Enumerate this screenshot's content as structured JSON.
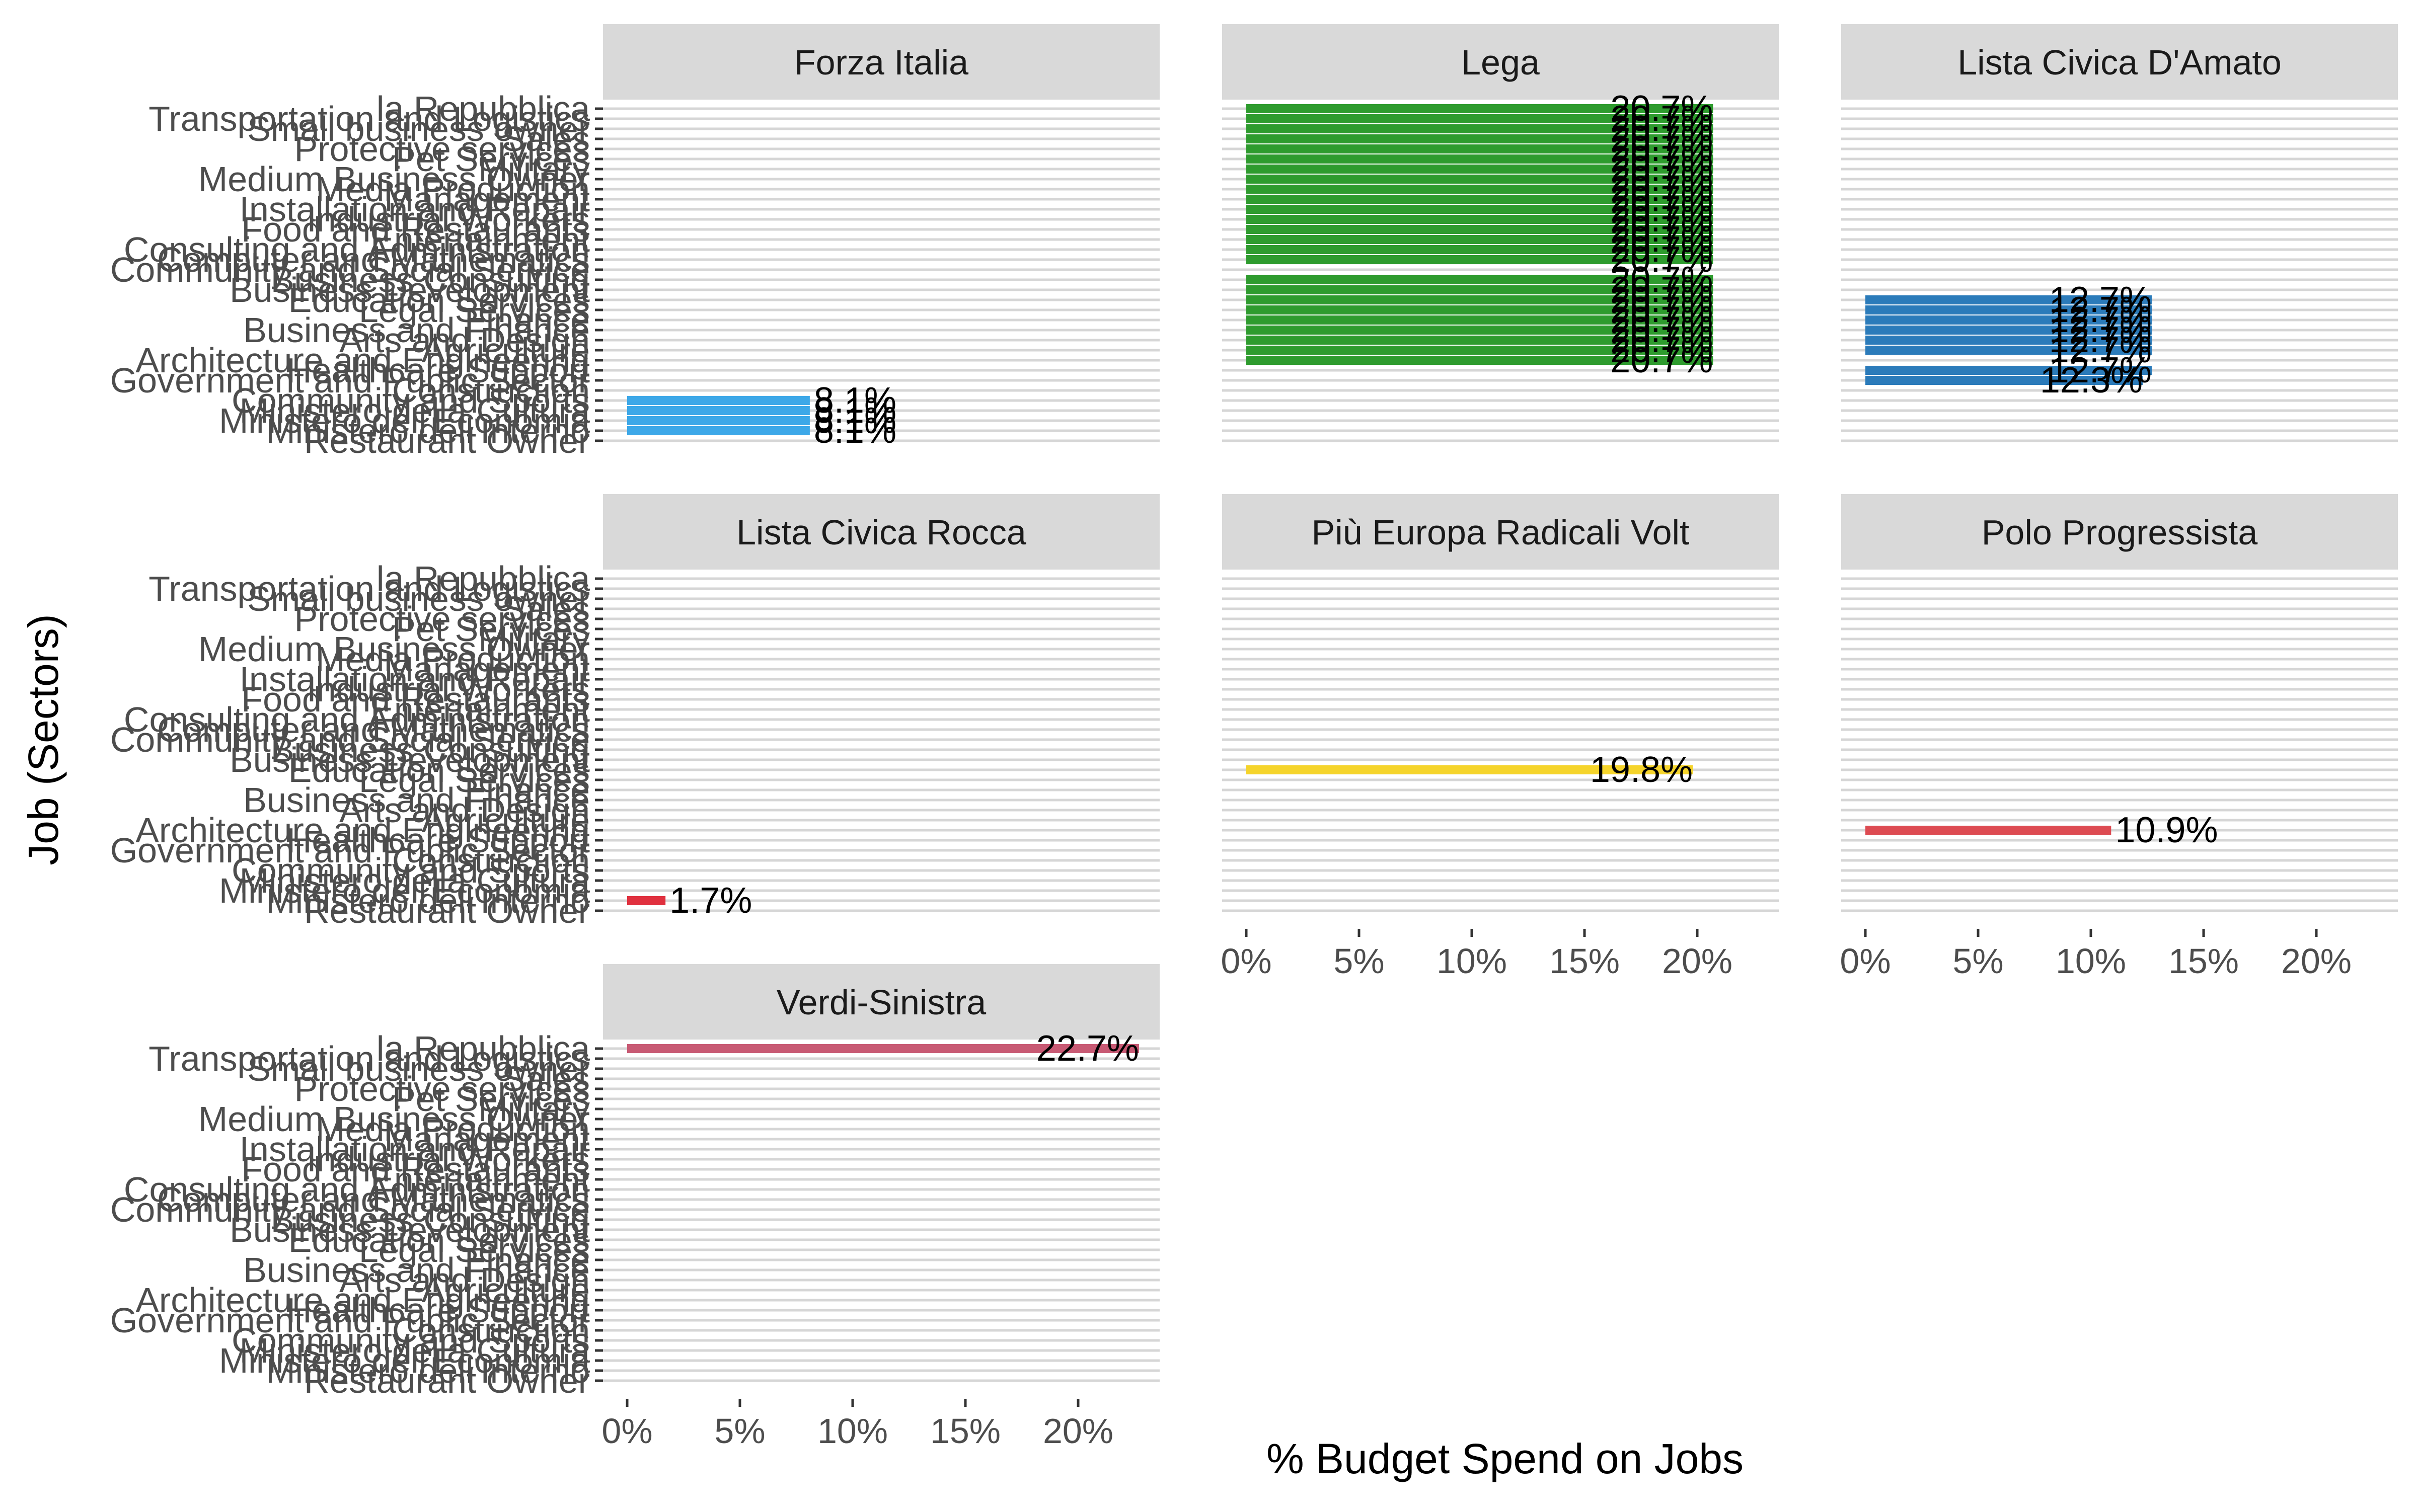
{
  "chart_data": {
    "type": "bar",
    "orientation": "horizontal",
    "xlabel": "% Budget Spend on Jobs",
    "ylabel": "Job (Sectors)",
    "xlim": [
      0,
      0.24
    ],
    "x_ticks": [
      0,
      0.05,
      0.1,
      0.15,
      0.2
    ],
    "x_tick_labels": [
      "0%",
      "5%",
      "10%",
      "15%",
      "20%"
    ],
    "categories": [
      "la Repubblica",
      "Transportation and Logistics",
      "Small business owner",
      "Sales",
      "Protective services",
      "Pet Services",
      "Military",
      "Medium Business Owner",
      "Media Production",
      "Management",
      "Installation and Repair",
      "Industrial Workers",
      "Food and Restaurants",
      "Entertainment",
      "Consulting and Administration",
      "Computer and Mathematics",
      "Community and Social Service",
      "Business Consulting",
      "Business Development",
      "Education Services",
      "Legal Services",
      "Finance",
      "Business and Finance",
      "Arts and Design",
      "Agriculture",
      "Architecture and Engineering",
      "Healthcare Support",
      "Government and Public Sector",
      "Construction",
      "Community and Sports",
      "Ministero della Cultura",
      "Ministero dell'Economia",
      "Ministero dell'Interno",
      "Restaurant Owner"
    ],
    "panels": [
      {
        "name": "Forza Italia",
        "color": "#3DA8E8",
        "bars": [
          {
            "category": "Ministero della Cultura",
            "value": 0.081,
            "label": "8.1%"
          },
          {
            "category": "Ministero dell'Economia",
            "value": 0.081,
            "label": "8.1%"
          },
          {
            "category": "Ministero dell'Interno",
            "value": 0.081,
            "label": "8.1%"
          },
          {
            "category": "Community and Sports",
            "value": 0.081,
            "label": "8.1%"
          }
        ]
      },
      {
        "name": "Lega",
        "color": "#2E9B2E",
        "bars": [
          {
            "category": "la Repubblica",
            "value": 0.207,
            "label": "20.7%"
          },
          {
            "category": "Transportation and Logistics",
            "value": 0.207,
            "label": "20.7%"
          },
          {
            "category": "Small business owner",
            "value": 0.207,
            "label": "20.7%"
          },
          {
            "category": "Sales",
            "value": 0.207,
            "label": "20.7%"
          },
          {
            "category": "Protective services",
            "value": 0.207,
            "label": "20.7%"
          },
          {
            "category": "Pet Services",
            "value": 0.207,
            "label": "20.7%"
          },
          {
            "category": "Military",
            "value": 0.207,
            "label": "20.7%"
          },
          {
            "category": "Medium Business Owner",
            "value": 0.207,
            "label": "20.7%"
          },
          {
            "category": "Media Production",
            "value": 0.207,
            "label": "20.7%"
          },
          {
            "category": "Management",
            "value": 0.207,
            "label": "20.7%"
          },
          {
            "category": "Installation and Repair",
            "value": 0.207,
            "label": "20.7%"
          },
          {
            "category": "Industrial Workers",
            "value": 0.207,
            "label": "20.7%"
          },
          {
            "category": "Food and Restaurants",
            "value": 0.207,
            "label": "20.7%"
          },
          {
            "category": "Entertainment",
            "value": 0.207,
            "label": "20.7%"
          },
          {
            "category": "Consulting and Administration",
            "value": 0.207,
            "label": "20.7%"
          },
          {
            "category": "Computer and Mathematics",
            "value": 0.207,
            "label": "20.7%"
          },
          {
            "category": "Business Consulting",
            "value": 0.207,
            "label": "20.7%"
          },
          {
            "category": "Business Development",
            "value": 0.207,
            "label": "20.7%"
          },
          {
            "category": "Education Services",
            "value": 0.207,
            "label": "20.7%"
          },
          {
            "category": "Legal Services",
            "value": 0.207,
            "label": "20.7%"
          },
          {
            "category": "Finance",
            "value": 0.207,
            "label": "20.7%"
          },
          {
            "category": "Business and Finance",
            "value": 0.207,
            "label": "20.7%"
          },
          {
            "category": "Arts and Design",
            "value": 0.207,
            "label": "20.7%"
          },
          {
            "category": "Agriculture",
            "value": 0.207,
            "label": "20.7%"
          },
          {
            "category": "Architecture and Engineering",
            "value": 0.207,
            "label": "20.7%"
          }
        ]
      },
      {
        "name": "Lista Civica D'Amato",
        "color": "#2B7BBA",
        "bars": [
          {
            "category": "Education Services",
            "value": 0.127,
            "label": "12.7%"
          },
          {
            "category": "Legal Services",
            "value": 0.127,
            "label": "12.7%"
          },
          {
            "category": "Finance",
            "value": 0.127,
            "label": "12.7%"
          },
          {
            "category": "Business and Finance",
            "value": 0.127,
            "label": "12.7%"
          },
          {
            "category": "Arts and Design",
            "value": 0.127,
            "label": "12.7%"
          },
          {
            "category": "Agriculture",
            "value": 0.127,
            "label": "12.7%"
          },
          {
            "category": "Healthcare Support",
            "value": 0.127,
            "label": "12.7%"
          },
          {
            "category": "Government and Public Sector",
            "value": 0.123,
            "label": "12.3%"
          }
        ]
      },
      {
        "name": "Lista Civica Rocca",
        "color": "#E0313F",
        "bars": [
          {
            "category": "Ministero dell'Interno",
            "value": 0.017,
            "label": "1.7%"
          }
        ]
      },
      {
        "name": "Più Europa Radicali Volt",
        "color": "#F5D42B",
        "bars": [
          {
            "category": "Education Services",
            "value": 0.198,
            "label": "19.8%"
          }
        ]
      },
      {
        "name": "Polo Progressista",
        "color": "#DD4B52",
        "bars": [
          {
            "category": "Architecture and Engineering",
            "value": 0.109,
            "label": "10.9%"
          }
        ]
      },
      {
        "name": "Verdi-Sinistra",
        "color": "#C85A74",
        "bars": [
          {
            "category": "la Repubblica",
            "value": 0.227,
            "label": "22.7%"
          }
        ]
      }
    ]
  }
}
